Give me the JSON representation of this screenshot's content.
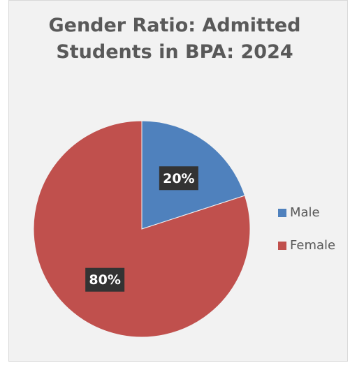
{
  "chart_data": {
    "type": "pie",
    "title": "Gender Ratio: Admitted Students in BPA: 2024",
    "categories": [
      "Male",
      "Female"
    ],
    "values": [
      20,
      80
    ],
    "value_labels": [
      "20%",
      "80%"
    ],
    "colors": [
      "#4f81bd",
      "#c0504d"
    ],
    "legend": "right"
  }
}
